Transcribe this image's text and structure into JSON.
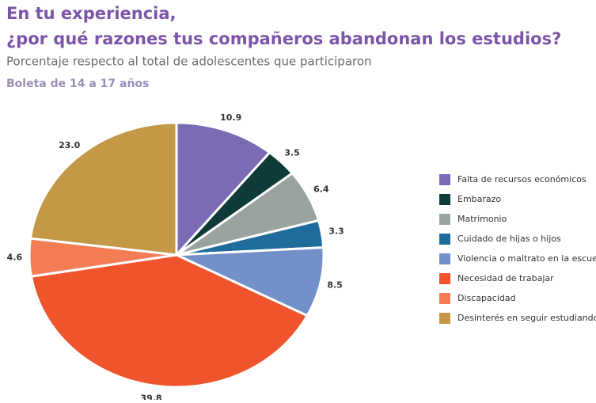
{
  "chart_data": {
    "type": "pie",
    "title": "En tu experiencia,",
    "title_line2": "¿por qué razones tus compañeros abandonan los estudios?",
    "subtitle": "Porcentaje respecto al total de adolescentes que participaron",
    "group_label": "Boleta de 14 a 17 años",
    "categories": [
      "Falta de recursos económicos",
      "Embarazo",
      "Matrimonio",
      "Cuidado de hijas o hijos",
      "Violencia o maltrato en la escuela",
      "Necesidad de trabajar",
      "Discapacidad",
      "Desinterés en seguir estudiando"
    ],
    "values": [
      10.9,
      3.5,
      6.4,
      3.3,
      8.5,
      39.8,
      4.6,
      23.0
    ],
    "value_labels": [
      "10.9",
      "3.5",
      "6.4",
      "3.3",
      "8.5",
      "39.8",
      "4.6",
      "23.0"
    ],
    "colors": [
      "#7b6bb5",
      "#0e3b38",
      "#9aa39e",
      "#1f6c9c",
      "#7490c9",
      "#f0542c",
      "#f47d56",
      "#c39846"
    ],
    "legend": "right"
  }
}
